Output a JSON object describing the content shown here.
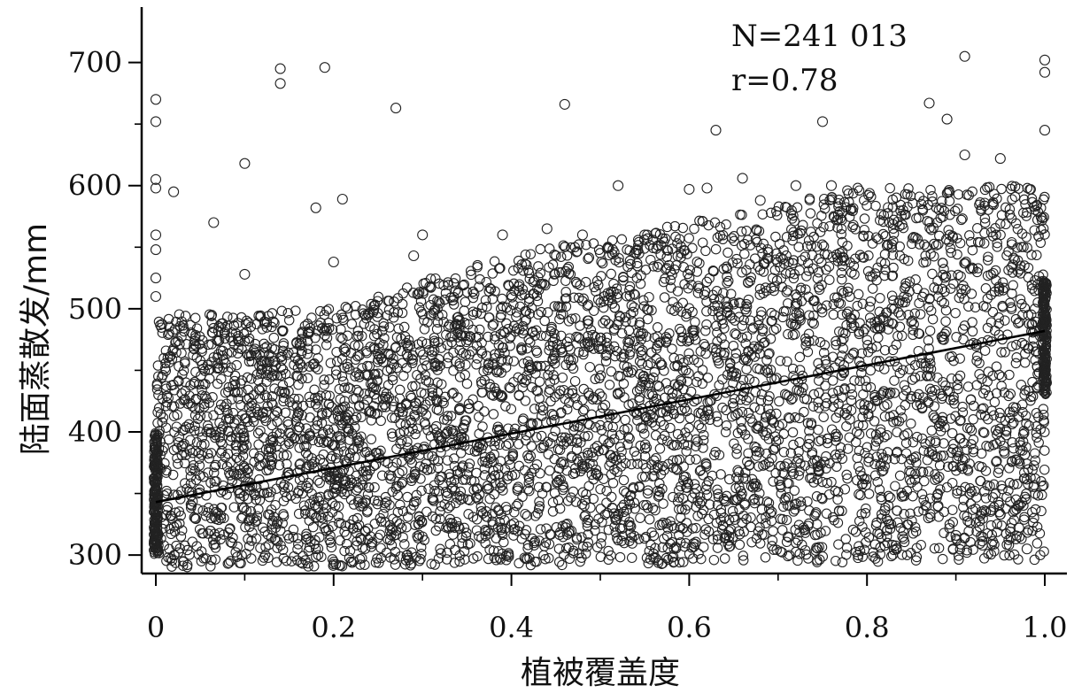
{
  "chart_data": {
    "type": "scatter",
    "title": "",
    "xlabel": "植被覆盖度",
    "ylabel": "陆面蒸散发/mm",
    "xlim": [
      0,
      1.0
    ],
    "ylim": [
      285,
      745
    ],
    "x_ticks": [
      0,
      0.2,
      0.4,
      0.6,
      0.8,
      1.0
    ],
    "x_tick_labels": [
      "0",
      "0.2",
      "0.4",
      "0.6",
      "0.8",
      "1.0"
    ],
    "y_ticks": [
      300,
      400,
      500,
      600,
      700
    ],
    "y_tick_labels": [
      "300",
      "400",
      "500",
      "600",
      "700"
    ],
    "grid": false,
    "annotations": {
      "n_label": "N=241 013",
      "r_label": "r=0.78"
    },
    "series": [
      {
        "marker": "open-circle",
        "color": "#222222",
        "density": {
          "x_min": 0,
          "x_max": 1.0,
          "lower_bound": [
            [
              0,
              290
            ],
            [
              0.5,
              292
            ],
            [
              1.0,
              295
            ]
          ],
          "upper_bound": [
            [
              0,
              495
            ],
            [
              0.2,
              500
            ],
            [
              0.4,
              545
            ],
            [
              0.6,
              570
            ],
            [
              0.8,
              600
            ],
            [
              1.0,
              600
            ]
          ],
          "approx_point_count": 241013
        },
        "values": [
          [
            0.0,
            670
          ],
          [
            0.0,
            652
          ],
          [
            0.0,
            605
          ],
          [
            0.0,
            598
          ],
          [
            0.02,
            595
          ],
          [
            0.0,
            560
          ],
          [
            0.0,
            548
          ],
          [
            0.0,
            525
          ],
          [
            0.0,
            510
          ],
          [
            0.065,
            570
          ],
          [
            0.1,
            618
          ],
          [
            0.1,
            528
          ],
          [
            0.14,
            695
          ],
          [
            0.14,
            683
          ],
          [
            0.19,
            696
          ],
          [
            0.18,
            582
          ],
          [
            0.21,
            589
          ],
          [
            0.2,
            538
          ],
          [
            0.27,
            663
          ],
          [
            0.3,
            560
          ],
          [
            0.29,
            543
          ],
          [
            0.46,
            666
          ],
          [
            0.52,
            600
          ],
          [
            0.63,
            645
          ],
          [
            0.66,
            606
          ],
          [
            0.68,
            588
          ],
          [
            0.75,
            652
          ],
          [
            0.87,
            667
          ],
          [
            0.89,
            654
          ],
          [
            0.91,
            705
          ],
          [
            0.91,
            625
          ],
          [
            0.95,
            622
          ],
          [
            1.0,
            702
          ],
          [
            1.0,
            692
          ],
          [
            1.0,
            645
          ],
          [
            0.88,
            340
          ],
          [
            0.9,
            316
          ],
          [
            0.95,
            333
          ],
          [
            0.97,
            340
          ],
          [
            0.93,
            308
          ],
          [
            0.98,
            305
          ],
          [
            0.84,
            315
          ],
          [
            0.82,
            336
          ],
          [
            0.79,
            300
          ],
          [
            0.55,
            560
          ],
          [
            0.57,
            557
          ],
          [
            0.48,
            560
          ],
          [
            0.44,
            565
          ],
          [
            0.39,
            560
          ],
          [
            0.6,
            597
          ],
          [
            0.62,
            598
          ],
          [
            0.72,
            600
          ],
          [
            0.76,
            600
          ]
        ]
      }
    ],
    "fit_line": {
      "x": [
        0,
        1.0
      ],
      "y": [
        343,
        482
      ]
    }
  }
}
